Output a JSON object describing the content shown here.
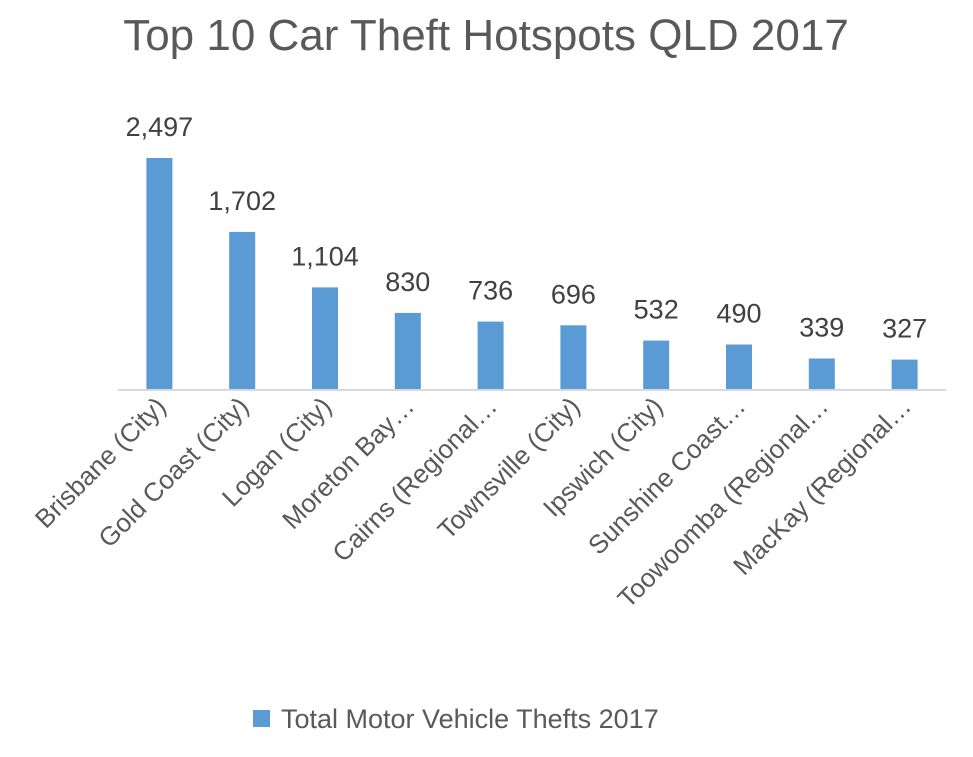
{
  "chart_data": {
    "type": "bar",
    "title": "Top 10 Car Theft Hotspots QLD 2017",
    "categories": [
      "Brisbane (City)",
      "Gold Coast (City)",
      "Logan (City)",
      "Moreton Bay…",
      "Cairns (Regional…",
      "Townsville (City)",
      "Ipswich (City)",
      "Sunshine Coast…",
      "Toowoomba (Regional…",
      "MacKay (Regional…"
    ],
    "series": [
      {
        "name": "Total Motor Vehicle Thefts 2017",
        "values": [
          2497,
          1702,
          1104,
          830,
          736,
          696,
          532,
          490,
          339,
          327
        ],
        "data_labels": [
          "2,497",
          "1,702",
          "1,104",
          "830",
          "736",
          "696",
          "532",
          "490",
          "339",
          "327"
        ],
        "color": "#5B9BD5"
      }
    ],
    "xlabel": "",
    "ylabel": "",
    "ylim": [
      0,
      2500
    ],
    "grid": false,
    "legend": "bottom",
    "colors": {
      "bar": "#5B9BD5",
      "axis": "#D9D9D9",
      "title": "#595959",
      "label": "#404040"
    }
  }
}
